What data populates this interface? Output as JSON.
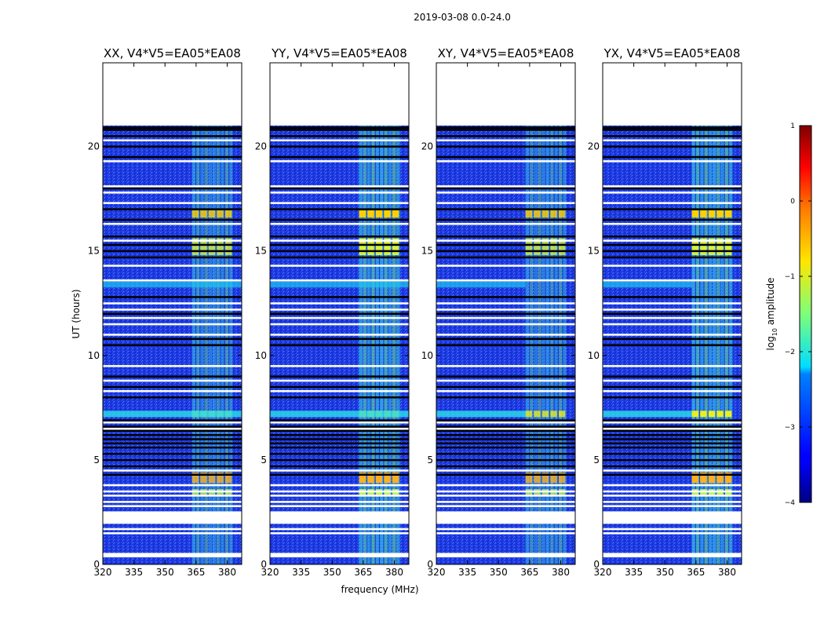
{
  "figure_title": "2019-03-08 0.0-24.0",
  "chart_data": [
    {
      "type": "heatmap",
      "title": "XX, V4*V5=EA05*EA08",
      "xlabel": "",
      "ylabel": "UT (hours)",
      "xlim": [
        320,
        387
      ],
      "ylim": [
        0,
        24
      ],
      "xticks": [
        320,
        335,
        350,
        365,
        380
      ],
      "yticks": [
        0,
        5,
        10,
        15,
        20
      ],
      "data_end_hours": 21
    },
    {
      "type": "heatmap",
      "title": "YY, V4*V5=EA05*EA08",
      "xlabel": "frequency (MHz)",
      "ylabel": "",
      "xlim": [
        320,
        387
      ],
      "ylim": [
        0,
        24
      ],
      "xticks": [
        320,
        335,
        350,
        365,
        380
      ],
      "yticks": [
        0,
        5,
        10,
        15,
        20
      ],
      "data_end_hours": 21
    },
    {
      "type": "heatmap",
      "title": "XY, V4*V5=EA05*EA08",
      "xlabel": "",
      "ylabel": "",
      "xlim": [
        320,
        387
      ],
      "ylim": [
        0,
        24
      ],
      "xticks": [
        320,
        335,
        350,
        365,
        380
      ],
      "yticks": [
        0,
        5,
        10,
        15,
        20
      ],
      "data_end_hours": 21
    },
    {
      "type": "heatmap",
      "title": "YX, V4*V5=EA05*EA08",
      "xlabel": "",
      "ylabel": "",
      "xlim": [
        320,
        387
      ],
      "ylim": [
        0,
        24
      ],
      "xticks": [
        320,
        335,
        350,
        365,
        380
      ],
      "yticks": [
        0,
        5,
        10,
        15,
        20
      ],
      "data_end_hours": 21
    }
  ],
  "colorbar": {
    "label_prefix": "log",
    "label_sub": "10",
    "label_suffix": " amplitude",
    "range": [
      -4,
      1
    ],
    "ticks": [
      "1",
      "0",
      "−1",
      "−2",
      "−3",
      "−4"
    ],
    "colormap": "jet"
  },
  "rfi_band_mhz": [
    363,
    383
  ],
  "flagged_ut_hours": [
    0.4,
    0.5,
    1.5,
    1.7,
    2.0,
    2.1,
    2.5,
    2.8,
    3.0,
    3.3,
    3.5,
    3.8,
    4.5,
    6.5,
    6.8,
    8.3,
    8.8,
    9.5,
    11.0,
    11.5,
    11.8,
    12.2,
    12.5,
    13.6,
    14.3,
    15.5,
    16.3,
    17.3,
    17.8,
    18.1,
    19.3,
    20.3
  ],
  "dark_ut_hours": [
    4.3,
    4.7,
    5.0,
    5.3,
    5.6,
    5.8,
    6.0,
    6.2,
    6.4,
    6.6,
    6.9,
    8.0,
    8.5,
    9.0,
    10.5,
    10.8,
    12.0,
    12.8,
    14.7,
    15.0,
    15.3,
    15.7,
    16.5,
    17.0,
    18.0,
    19.5,
    20.0,
    20.5,
    20.8
  ]
}
